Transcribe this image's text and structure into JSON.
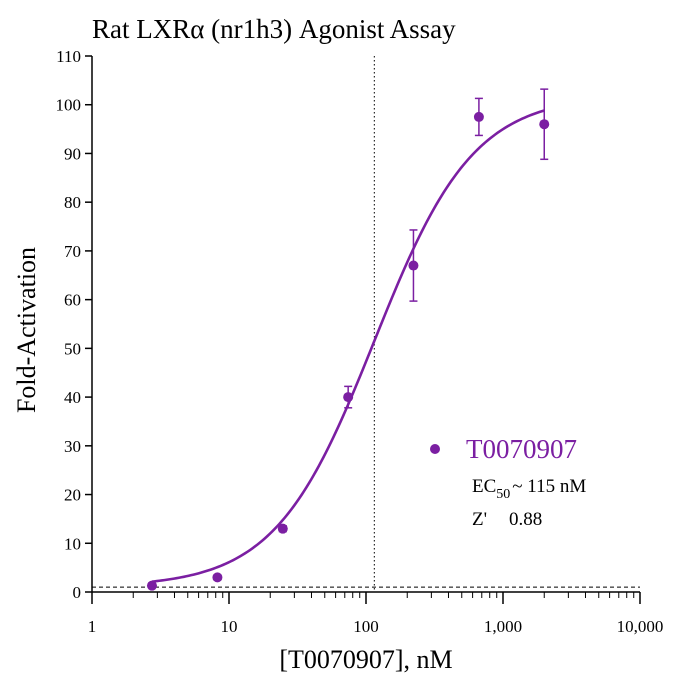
{
  "chart_data": {
    "type": "scatter",
    "title": "Rat LXRα (nr1h3) Agonist Assay",
    "xlabel": "[T0070907], nM",
    "ylabel": "Fold-Activation",
    "x_scale": "log",
    "xlim": [
      1,
      10000
    ],
    "ylim": [
      0,
      110
    ],
    "x_ticks": [
      1,
      10,
      100,
      1000,
      10000
    ],
    "x_tick_labels": [
      "1",
      "10",
      "100",
      "1,000",
      "10,000"
    ],
    "y_ticks": [
      0,
      10,
      20,
      30,
      40,
      50,
      60,
      70,
      80,
      90,
      100,
      110
    ],
    "y_tick_labels": [
      "0",
      "10",
      "20",
      "30",
      "40",
      "50",
      "60",
      "70",
      "80",
      "90",
      "100",
      "110"
    ],
    "grid": false,
    "series": [
      {
        "name": "T0070907",
        "color": "#7b1fa2",
        "points": [
          {
            "x": 2.74,
            "y": 1.3,
            "err": 0.4
          },
          {
            "x": 8.23,
            "y": 3.0,
            "err": 0.5
          },
          {
            "x": 24.7,
            "y": 13.0,
            "err": 0.6
          },
          {
            "x": 74.1,
            "y": 40.0,
            "err": 2.2
          },
          {
            "x": 222,
            "y": 67.0,
            "err": 7.3
          },
          {
            "x": 667,
            "y": 97.5,
            "err": 3.8
          },
          {
            "x": 2000,
            "y": 96.0,
            "err": 7.2
          }
        ],
        "fit": {
          "model": "4-parameter logistic",
          "bottom": 1,
          "top": 102,
          "ec50": 115,
          "hill": 1.2
        }
      }
    ],
    "reference_lines": [
      {
        "type": "vertical",
        "x": 115,
        "style": "dotted"
      },
      {
        "type": "horizontal",
        "y": 1,
        "style": "dashed"
      }
    ],
    "legend": {
      "placement": "lower-right",
      "entries": [
        {
          "name": "T0070907",
          "color": "#7b1fa2"
        }
      ],
      "stats": {
        "ec50_prefix": "EC",
        "ec50_subscript": "50",
        "ec50_value": "~ 115 nM",
        "z_label": "Z'",
        "z_value": "0.88"
      }
    }
  }
}
